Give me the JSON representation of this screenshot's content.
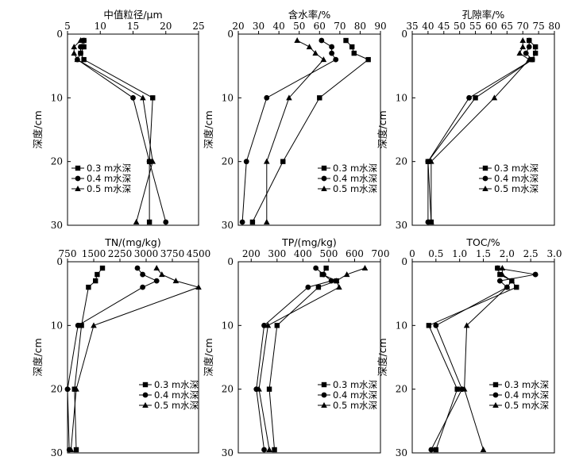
{
  "chart_data": [
    {
      "type": "line",
      "title": "中值粒径/μm",
      "xlabel": "中值粒径/μm",
      "ylabel": "深度/cm",
      "xlim": [
        5,
        25
      ],
      "ylim": [
        0,
        30
      ],
      "xticks": [
        "5",
        "10",
        "15",
        "20",
        "25"
      ],
      "yticks": [
        "0",
        "10",
        "20",
        "30"
      ],
      "legend_position": "center-left",
      "series": [
        {
          "name": "0.3 m水深",
          "marker": "square",
          "x": [
            7.5,
            7.5,
            7,
            7.5,
            18,
            17.5,
            17.5
          ],
          "y": [
            1,
            2,
            3,
            4,
            10,
            20,
            29.5
          ]
        },
        {
          "name": "0.4 m水深",
          "marker": "circle",
          "x": [
            7.5,
            7,
            7,
            6.5,
            15,
            17.5,
            20
          ],
          "y": [
            1,
            2,
            3,
            4,
            10,
            20,
            29.5
          ]
        },
        {
          "name": "0.5 m水深",
          "marker": "triangle",
          "x": [
            7,
            6,
            6,
            6.5,
            16.5,
            18,
            15.5
          ],
          "y": [
            1,
            2,
            3,
            4,
            10,
            20,
            29.5
          ]
        }
      ]
    },
    {
      "type": "line",
      "title": "含水率/%",
      "xlabel": "含水率/%",
      "ylabel": "深度/cm",
      "xlim": [
        20,
        90
      ],
      "ylim": [
        0,
        30
      ],
      "xticks": [
        "20",
        "30",
        "40",
        "50",
        "60",
        "70",
        "80",
        "90"
      ],
      "yticks": [
        "0",
        "10",
        "20",
        "30"
      ],
      "legend_position": "bottom-right",
      "series": [
        {
          "name": "0.3 m水深",
          "marker": "square",
          "x": [
            73,
            76,
            77,
            84,
            60,
            42,
            27
          ],
          "y": [
            1,
            2,
            3,
            4,
            10,
            20,
            29.5
          ]
        },
        {
          "name": "0.4 m水深",
          "marker": "circle",
          "x": [
            61,
            66,
            66,
            68,
            34,
            24,
            22
          ],
          "y": [
            1,
            2,
            3,
            4,
            10,
            20,
            29.5
          ]
        },
        {
          "name": "0.5 m水深",
          "marker": "triangle",
          "x": [
            49,
            55,
            58,
            62,
            45,
            34,
            34
          ],
          "y": [
            1,
            2,
            3,
            4,
            10,
            20,
            29.5
          ]
        }
      ]
    },
    {
      "type": "line",
      "title": "孔隙率/%",
      "xlabel": "孔隙率/%",
      "ylabel": "深度/cm",
      "xlim": [
        35,
        80
      ],
      "ylim": [
        0,
        30
      ],
      "xticks": [
        "35",
        "40",
        "45",
        "50",
        "55",
        "60",
        "65",
        "70",
        "75",
        "80"
      ],
      "yticks": [
        "0",
        "10",
        "20",
        "30"
      ],
      "legend_position": "bottom-right",
      "series": [
        {
          "name": "0.3 m水深",
          "marker": "square",
          "x": [
            72,
            74,
            74,
            73,
            55,
            40,
            41
          ],
          "y": [
            1,
            2,
            3,
            4,
            10,
            20,
            29.5
          ]
        },
        {
          "name": "0.4 m水深",
          "marker": "circle",
          "x": [
            72,
            72,
            71,
            73,
            53,
            40,
            40
          ],
          "y": [
            1,
            2,
            3,
            4,
            10,
            20,
            29.5
          ]
        },
        {
          "name": "0.5 m水深",
          "marker": "triangle",
          "x": [
            70,
            70,
            69,
            72,
            61,
            41,
            41
          ],
          "y": [
            1,
            2,
            3,
            4,
            10,
            20,
            29.5
          ]
        }
      ]
    },
    {
      "type": "line",
      "title": "TN/(mg/kg)",
      "xlabel": "TN/(mg/kg)",
      "ylabel": "深度/cm",
      "xlim": [
        750,
        4500
      ],
      "ylim": [
        0,
        30
      ],
      "xticks": [
        "750",
        "1500",
        "2250",
        "3000",
        "3750",
        "4500"
      ],
      "yticks": [
        "0",
        "10",
        "20",
        "30"
      ],
      "legend_position": "bottom-right",
      "series": [
        {
          "name": "0.3 m水深",
          "marker": "square",
          "x": [
            1750,
            1600,
            1550,
            1350,
            1150,
            950,
            1000
          ],
          "y": [
            1,
            2,
            3,
            4,
            10,
            20,
            29.5
          ]
        },
        {
          "name": "0.4 m水深",
          "marker": "circle",
          "x": [
            2750,
            2900,
            3300,
            2900,
            1050,
            750,
            800
          ],
          "y": [
            1,
            2,
            3,
            4,
            10,
            20,
            29.5
          ]
        },
        {
          "name": "0.5 m水深",
          "marker": "triangle",
          "x": [
            3300,
            3450,
            3850,
            4500,
            1500,
            1000,
            850
          ],
          "y": [
            1,
            2,
            3,
            4,
            10,
            20,
            29.5
          ]
        }
      ]
    },
    {
      "type": "line",
      "title": "TP/(mg/kg)",
      "xlabel": "TP/(mg/kg)",
      "ylabel": "深度/cm",
      "xlim": [
        150,
        700
      ],
      "ylim": [
        0,
        30
      ],
      "xticks": [
        "200",
        "300",
        "400",
        "500",
        "600",
        "700"
      ],
      "yticks": [
        "0",
        "10",
        "20",
        "30"
      ],
      "legend_position": "bottom-right",
      "series": [
        {
          "name": "0.3 m水深",
          "marker": "square",
          "x": [
            490,
            475,
            530,
            460,
            300,
            270,
            290
          ],
          "y": [
            1,
            2,
            3,
            4,
            10,
            20,
            29.5
          ]
        },
        {
          "name": "0.4 m水深",
          "marker": "circle",
          "x": [
            450,
            480,
            510,
            420,
            250,
            220,
            250
          ],
          "y": [
            1,
            2,
            3,
            4,
            10,
            20,
            29.5
          ]
        },
        {
          "name": "0.5 m水深",
          "marker": "triangle",
          "x": [
            640,
            570,
            530,
            540,
            265,
            230,
            270
          ],
          "y": [
            1,
            2,
            3,
            4,
            10,
            20,
            29.5
          ]
        }
      ]
    },
    {
      "type": "line",
      "title": "TOC/%",
      "xlabel": "TOC/%",
      "ylabel": "深度/cm",
      "xlim": [
        0,
        3
      ],
      "ylim": [
        0,
        30
      ],
      "xticks": [
        "0",
        "0.5",
        "1.0",
        "1.5",
        "2.0",
        "2.5",
        "3.0"
      ],
      "yticks": [
        "0",
        "10",
        "20",
        "30"
      ],
      "legend_position": "bottom-right",
      "series": [
        {
          "name": "0.3 m水深",
          "marker": "square",
          "x": [
            1.8,
            1.85,
            2.1,
            2.2,
            0.35,
            0.95,
            0.5
          ],
          "y": [
            1,
            2,
            3,
            4,
            10,
            20,
            29.5
          ]
        },
        {
          "name": "0.4 m水深",
          "marker": "circle",
          "x": [
            1.8,
            2.6,
            1.85,
            2.0,
            0.5,
            1.05,
            0.4
          ],
          "y": [
            1,
            2,
            3,
            4,
            10,
            20,
            29.5
          ]
        },
        {
          "name": "0.5 m水深",
          "marker": "triangle",
          "x": [
            1.9,
            1.9,
            2.1,
            2.0,
            1.15,
            1.1,
            1.5
          ],
          "y": [
            1,
            2,
            3,
            4,
            10,
            20,
            29.5
          ]
        }
      ]
    }
  ]
}
